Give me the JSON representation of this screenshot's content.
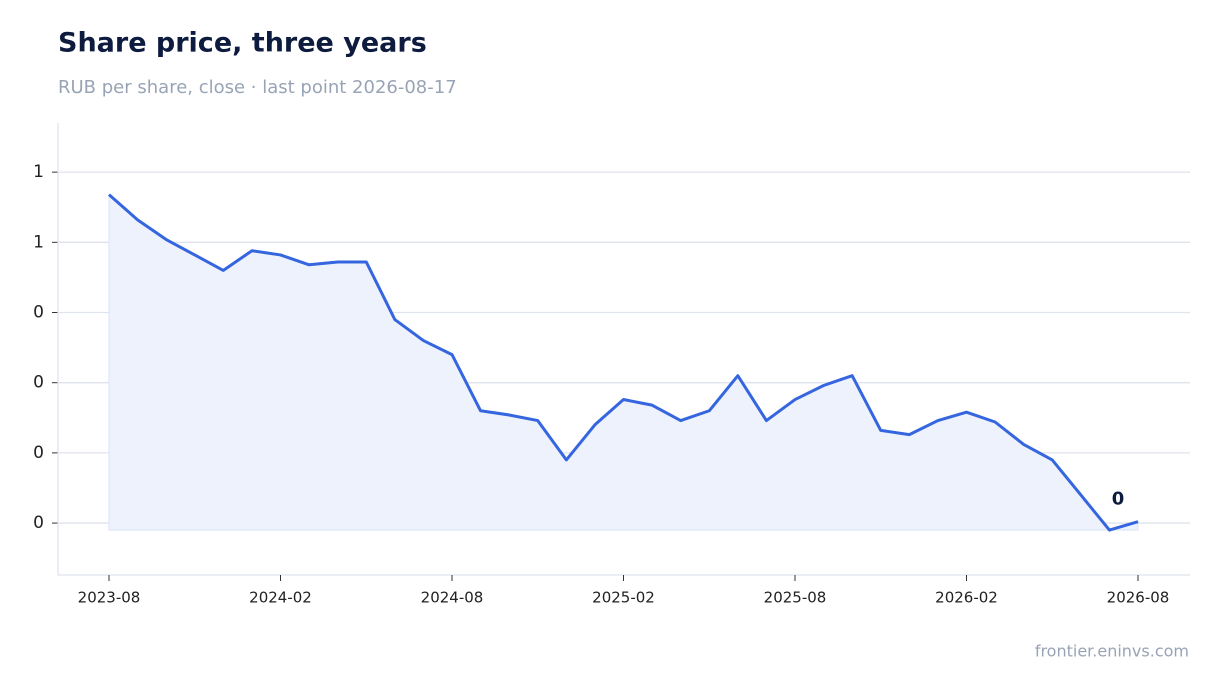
{
  "chart_data": {
    "type": "line",
    "title": "Share price, three years",
    "subtitle": "RUB per share, close · last point 2026-08-17",
    "source": "frontier.eninvs.com",
    "x": [
      "2023-08",
      "2023-09",
      "2023-10",
      "2023-11",
      "2023-12",
      "2024-01",
      "2024-02",
      "2024-03",
      "2024-04",
      "2024-05",
      "2024-06",
      "2024-07",
      "2024-08",
      "2024-09",
      "2024-10",
      "2024-11",
      "2024-12",
      "2025-01",
      "2025-02",
      "2025-03",
      "2025-04",
      "2025-05",
      "2025-06",
      "2025-07",
      "2025-08",
      "2025-09",
      "2025-10",
      "2025-11",
      "2025-12",
      "2026-01",
      "2026-02",
      "2026-03",
      "2026-04",
      "2026-05",
      "2026-06",
      "2026-07",
      "2026-08"
    ],
    "series": [
      {
        "name": "Close",
        "color": "#3566e0",
        "values": [
          0.584,
          0.566,
          0.552,
          0.541,
          0.53,
          0.544,
          0.541,
          0.534,
          0.536,
          0.536,
          0.495,
          0.48,
          0.47,
          0.43,
          0.427,
          0.423,
          0.395,
          0.42,
          0.438,
          0.434,
          0.423,
          0.43,
          0.455,
          0.423,
          0.438,
          0.448,
          0.455,
          0.416,
          0.413,
          0.423,
          0.429,
          0.422,
          0.406,
          0.395,
          0.37,
          0.345,
          0.351
        ]
      }
    ],
    "area_color": "#eef2fc",
    "xticks": [
      "2023-08",
      "2024-02",
      "2024-08",
      "2025-02",
      "2025-08",
      "2026-02",
      "2026-08"
    ],
    "ylim": [
      0.313,
      0.635
    ],
    "yticks": [
      {
        "value": 0.35,
        "label": "0"
      },
      {
        "value": 0.4,
        "label": "0"
      },
      {
        "value": 0.45,
        "label": "0"
      },
      {
        "value": 0.5,
        "label": "0"
      },
      {
        "value": 0.55,
        "label": "1"
      },
      {
        "value": 0.6,
        "label": "1"
      }
    ],
    "grid": true,
    "annotations": [
      {
        "x": "2026-08",
        "y": 0.351,
        "label": "0"
      }
    ]
  }
}
